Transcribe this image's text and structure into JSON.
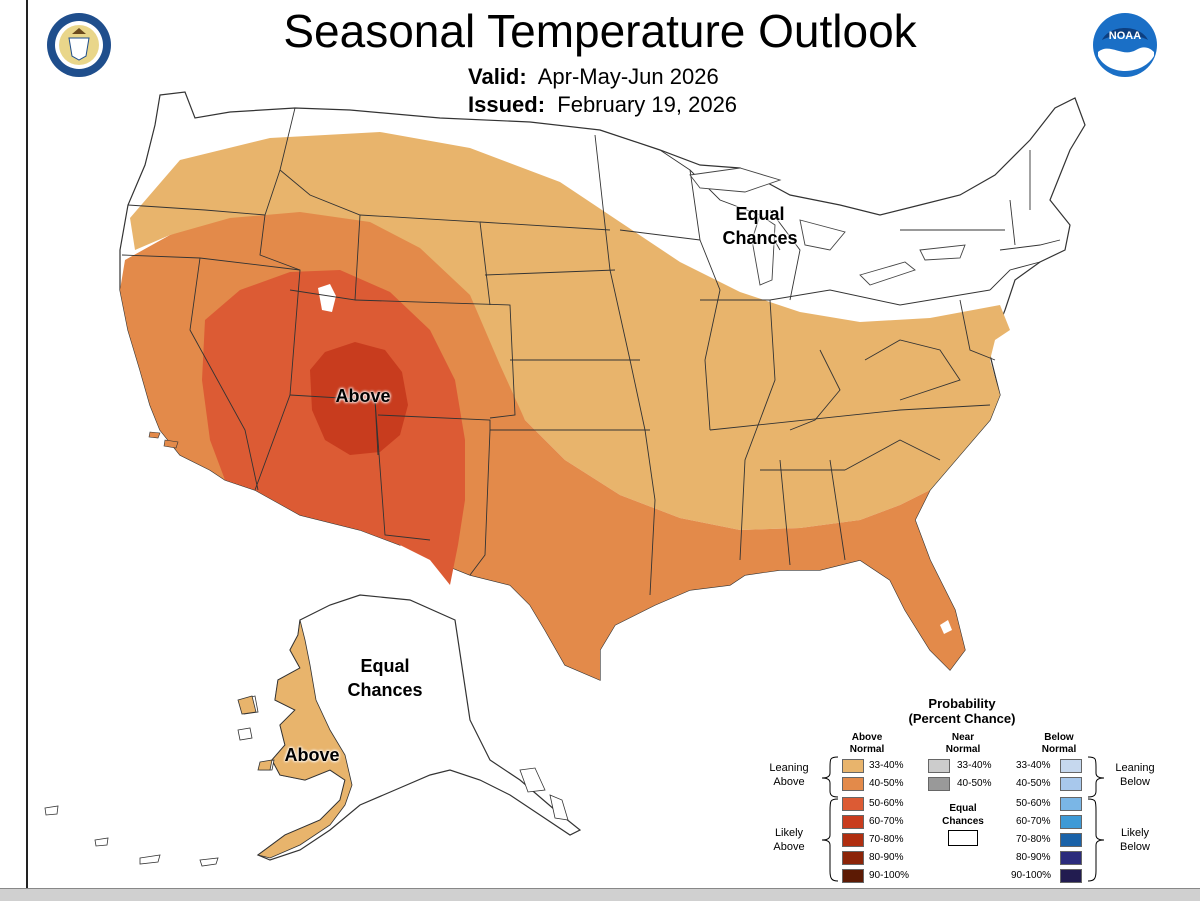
{
  "header": {
    "title": "Seasonal Temperature Outlook",
    "valid_label": "Valid:",
    "valid_value": "Apr-May-Jun 2026",
    "issued_label": "Issued:",
    "issued_value": "February 19, 2026"
  },
  "logos": {
    "left": "department-of-commerce-seal",
    "right": "NOAA"
  },
  "map_labels": {
    "conus_above": "Above",
    "conus_equal_1": "Equal",
    "conus_equal_2": "Chances",
    "alaska_equal_1": "Equal",
    "alaska_equal_2": "Chances",
    "alaska_above": "Above"
  },
  "colors": {
    "above_33_40": "#e8b46c",
    "above_40_50": "#e38a4a",
    "above_50_60": "#dc5b34",
    "above_60_70": "#c83c1e",
    "above_70_80": "#b02e10",
    "above_80_90": "#8c2408",
    "above_90_100": "#5c1a04",
    "near_33_40": "#cccccc",
    "near_40_50": "#999999",
    "below_33_40": "#c6d8ee",
    "below_40_50": "#a8c8ec",
    "below_50_60": "#7ab6e6",
    "below_60_70": "#3e9ad6",
    "below_70_80": "#1a62a8",
    "below_80_90": "#2c2c7c",
    "below_90_100": "#221c50"
  },
  "legend": {
    "title_1": "Probability",
    "title_2": "(Percent Chance)",
    "above_header_1": "Above",
    "above_header_2": "Normal",
    "near_header_1": "Near",
    "near_header_2": "Normal",
    "below_header_1": "Below",
    "below_header_2": "Normal",
    "leaning_above_1": "Leaning",
    "leaning_above_2": "Above",
    "likely_above_1": "Likely",
    "likely_above_2": "Above",
    "leaning_below_1": "Leaning",
    "leaning_below_2": "Below",
    "likely_below_1": "Likely",
    "likely_below_2": "Below",
    "equal_1": "Equal",
    "equal_2": "Chances",
    "above_ranges": [
      "33-40%",
      "40-50%",
      "50-60%",
      "60-70%",
      "70-80%",
      "80-90%",
      "90-100%"
    ],
    "near_ranges": [
      "33-40%",
      "40-50%"
    ],
    "below_ranges": [
      "33-40%",
      "40-50%",
      "50-60%",
      "60-70%",
      "70-80%",
      "80-90%",
      "90-100%"
    ]
  }
}
